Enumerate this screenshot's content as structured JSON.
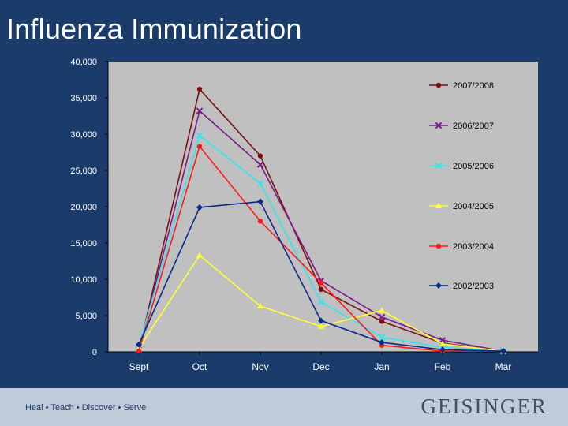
{
  "title": "Influenza Immunization",
  "footer": {
    "tagline": "Heal • Teach • Discover • Serve",
    "logo": "GEISINGER"
  },
  "colors": {
    "background": "#1b3c6b",
    "plot_area": "#c0c0c0",
    "footer_band": "#bfcbd8"
  },
  "chart_data": {
    "type": "line",
    "title": "",
    "xlabel": "",
    "ylabel": "",
    "categories": [
      "Sept",
      "Oct",
      "Nov",
      "Dec",
      "Jan",
      "Feb",
      "Mar"
    ],
    "ylim": [
      0,
      40000
    ],
    "yticks": [
      0,
      5000,
      10000,
      15000,
      20000,
      25000,
      30000,
      35000,
      40000
    ],
    "ytick_labels": [
      "0",
      "5,000",
      "10,000",
      "15,000",
      "20,000",
      "25,000",
      "30,000",
      "35,000",
      "40,000"
    ],
    "grid": false,
    "legend": "right",
    "series": [
      {
        "name": "2007/2008",
        "color": "#7b1010",
        "marker": "circle",
        "values": [
          200,
          36200,
          27000,
          8600,
          4200,
          1200,
          100
        ]
      },
      {
        "name": "2006/2007",
        "color": "#7a1a8c",
        "marker": "x",
        "values": [
          300,
          33200,
          25800,
          9800,
          4800,
          1600,
          100
        ]
      },
      {
        "name": "2005/2006",
        "color": "#33e6ee",
        "marker": "x",
        "values": [
          800,
          29800,
          23200,
          6900,
          2000,
          600,
          100
        ]
      },
      {
        "name": "2004/2005",
        "color": "#ffff33",
        "marker": "triangle",
        "values": [
          500,
          13300,
          6300,
          3500,
          5700,
          1100,
          100
        ]
      },
      {
        "name": "2003/2004",
        "color": "#ff1a1a",
        "marker": "circle",
        "values": [
          100,
          28300,
          18000,
          9500,
          900,
          100,
          100
        ]
      },
      {
        "name": "2002/2003",
        "color": "#0a2a8c",
        "marker": "diamond",
        "values": [
          1000,
          19900,
          20700,
          4300,
          1300,
          300,
          100
        ]
      }
    ]
  }
}
